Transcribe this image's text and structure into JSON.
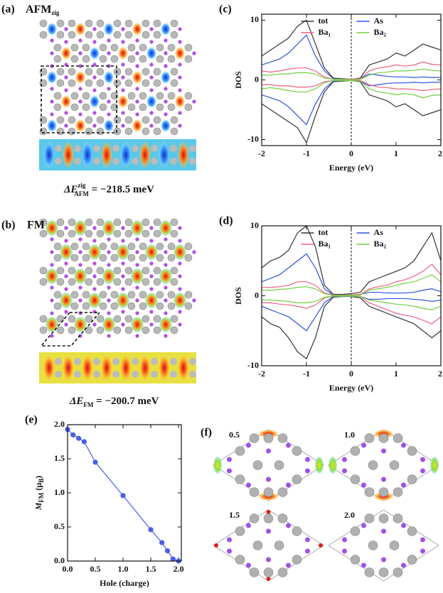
{
  "panels": {
    "a_label": "(a)",
    "a_title": "AFM",
    "a_title_sub": "zig",
    "a_energy": {
      "symbol": "ΔE",
      "sup": "zig",
      "sub": "AFM",
      "rest": " = −218.5 meV"
    },
    "b_label": "(b)",
    "b_title": "FM",
    "b_energy": {
      "symbol": "ΔE",
      "sub": "FM",
      "rest": " = −200.7 meV"
    },
    "f_label": "(f)",
    "f_values": [
      "0.5",
      "1.0",
      "1.5",
      "2.0"
    ]
  },
  "chart_data": [
    {
      "type": "line",
      "label": "(c)",
      "xlabel": "Energy (eV)",
      "ylabel": "DOS",
      "x": [
        -2,
        -1.8,
        -1.6,
        -1.4,
        -1.2,
        -1,
        -0.8,
        -0.6,
        -0.4,
        -0.2,
        0,
        0.2,
        0.4,
        0.6,
        0.8,
        1,
        1.2,
        1.4,
        1.6,
        1.8,
        2
      ],
      "xlim": [
        -2,
        2
      ],
      "ylim": [
        -11,
        11
      ],
      "xticks": [
        -2,
        -1,
        0,
        1,
        2
      ],
      "yticks": [
        -10,
        0,
        10
      ],
      "vline": 0,
      "series": [
        {
          "name": "tot",
          "color": "#333333",
          "values": [
            4,
            5,
            6,
            7,
            9,
            10,
            6,
            2,
            0.3,
            0.2,
            0.1,
            0.3,
            2.5,
            3,
            3.5,
            4.5,
            4,
            5,
            6,
            5.5,
            5
          ],
          "values_down": [
            -4,
            -5,
            -6,
            -7,
            -8,
            -10.5,
            -6,
            -2,
            -0.3,
            -0.2,
            -0.1,
            -0.3,
            -2.5,
            -3,
            -3.5,
            -4.5,
            -4,
            -5,
            -6,
            -5.5,
            -5
          ]
        },
        {
          "name": "As",
          "color": "#3050e0",
          "values": [
            2.5,
            3,
            3.5,
            4.5,
            6,
            7.5,
            4,
            1.5,
            0.2,
            0.1,
            0.1,
            0.2,
            1,
            0.8,
            0.6,
            0.5,
            0.5,
            0.4,
            0.5,
            0.4,
            0.4
          ],
          "values_down": [
            -2.5,
            -3,
            -3.5,
            -4.5,
            -6,
            -7.5,
            -4,
            -1.5,
            -0.2,
            -0.1,
            -0.1,
            -0.2,
            -1,
            -0.8,
            -0.6,
            -0.5,
            -0.5,
            -0.4,
            -0.5,
            -0.4,
            -0.4
          ]
        },
        {
          "name": "Ba₁",
          "color": "#f06080",
          "values": [
            1.5,
            1.3,
            1.5,
            1.8,
            2,
            2,
            1.5,
            0.5,
            0.1,
            0.1,
            0.1,
            0.2,
            1.5,
            2,
            2.2,
            2.5,
            2.3,
            2.5,
            3,
            2.6,
            2.5
          ],
          "values_down": [
            -0.8,
            -0.8,
            -1,
            -1,
            -1.2,
            -1.2,
            -1,
            -0.3,
            -0.1,
            -0.1,
            -0.05,
            -0.1,
            -0.8,
            -1.2,
            -1.3,
            -1.5,
            -1.5,
            -1.6,
            -1.8,
            -1.6,
            -1.5
          ]
        },
        {
          "name": "Ba₂",
          "color": "#70d040",
          "values": [
            0.8,
            0.8,
            1,
            1,
            1.2,
            1.2,
            1,
            0.3,
            0.1,
            0.1,
            0.05,
            0.1,
            0.8,
            1.2,
            1.3,
            1.5,
            1.5,
            1.6,
            1.8,
            1.6,
            1.5
          ],
          "values_down": [
            -1.5,
            -1.3,
            -1.5,
            -1.8,
            -2,
            -2,
            -1.5,
            -0.5,
            -0.1,
            -0.1,
            -0.1,
            -0.2,
            -1.5,
            -2,
            -2.2,
            -2.5,
            -2.3,
            -2.5,
            -3,
            -2.6,
            -2.5
          ]
        }
      ]
    },
    {
      "type": "line",
      "label": "(d)",
      "xlabel": "Energy (eV)",
      "ylabel": "DOS",
      "x": [
        -2,
        -1.8,
        -1.6,
        -1.4,
        -1.2,
        -1,
        -0.8,
        -0.6,
        -0.4,
        -0.2,
        0,
        0.2,
        0.4,
        0.6,
        0.8,
        1,
        1.2,
        1.4,
        1.6,
        1.8,
        2
      ],
      "xlim": [
        -2,
        2
      ],
      "ylim": [
        -10,
        10
      ],
      "xticks": [
        -2,
        -1,
        0,
        1,
        2
      ],
      "yticks": [
        -10,
        0,
        10
      ],
      "vline": 0,
      "series": [
        {
          "name": "tot",
          "color": "#333333",
          "values": [
            4,
            5,
            5.5,
            6.5,
            9,
            10,
            7,
            1.5,
            0.2,
            0.2,
            0.3,
            0.5,
            2,
            2.5,
            3,
            3.5,
            4,
            5,
            7,
            9,
            5
          ],
          "values_down": [
            -3,
            -4,
            -4.5,
            -6,
            -8,
            -9,
            -6,
            -1.5,
            -0.2,
            -0.1,
            -0.1,
            -0.3,
            -1.5,
            -2,
            -2.5,
            -3,
            -3.5,
            -4,
            -5,
            -6,
            -5
          ]
        },
        {
          "name": "As",
          "color": "#3050e0",
          "values": [
            2,
            2.5,
            3,
            4,
            5,
            6,
            4,
            1,
            0.1,
            0.1,
            0.1,
            0.2,
            0.5,
            0.5,
            0.4,
            0.4,
            0.4,
            0.5,
            0.8,
            1,
            0.6
          ],
          "values_down": [
            -1.5,
            -2,
            -2.5,
            -3,
            -4,
            -5,
            -3,
            -1,
            -0.1,
            -0.1,
            -0.05,
            -0.1,
            -0.5,
            -0.5,
            -0.4,
            -0.4,
            -0.4,
            -0.5,
            -0.6,
            -0.8,
            -0.6
          ]
        },
        {
          "name": "Ba₁",
          "color": "#f06080",
          "values": [
            1.2,
            1.2,
            1.3,
            1.5,
            2,
            2,
            1.5,
            0.4,
            0.1,
            0.1,
            0.1,
            0.2,
            1,
            1.3,
            1.5,
            2,
            2.3,
            2.8,
            3.5,
            4.5,
            3
          ],
          "values_down": [
            -1,
            -1,
            -1.2,
            -1.3,
            -1.5,
            -1.8,
            -1.3,
            -0.3,
            -0.05,
            -0.05,
            -0.05,
            -0.1,
            -1,
            -1.5,
            -2,
            -2.5,
            -2.8,
            -3,
            -3.5,
            -4,
            -3
          ]
        },
        {
          "name": "Ba₂",
          "color": "#70d040",
          "values": [
            0.8,
            0.8,
            0.9,
            1,
            1.2,
            1.3,
            1,
            0.3,
            0.05,
            0.05,
            0.05,
            0.1,
            0.8,
            1,
            1.2,
            1.5,
            1.8,
            2,
            2.5,
            3,
            2
          ],
          "values_down": [
            -0.6,
            -0.6,
            -0.7,
            -0.8,
            -1,
            -1,
            -0.8,
            -0.2,
            -0.05,
            -0.05,
            -0.05,
            -0.1,
            -0.6,
            -0.8,
            -1,
            -1.2,
            -1.3,
            -1.5,
            -1.8,
            -2,
            -1.5
          ]
        }
      ]
    },
    {
      "type": "scatter",
      "label": "(e)",
      "xlabel": "Hole (charge)",
      "ylabel": [
        {
          "text": "M"
        },
        {
          "sub": "FM"
        },
        {
          "text": " (μ"
        },
        {
          "sub": "B"
        },
        {
          "text": ")"
        }
      ],
      "color": "#4a5ee8",
      "connect": true,
      "x": [
        0,
        0.1,
        0.2,
        0.3,
        0.5,
        1.0,
        1.5,
        1.7,
        1.8,
        1.9,
        2.0
      ],
      "values": [
        1.93,
        1.85,
        1.8,
        1.75,
        1.45,
        0.96,
        0.46,
        0.27,
        0.15,
        0.03,
        0.0
      ],
      "xlim": [
        0,
        2.05
      ],
      "ylim": [
        0,
        2.0
      ],
      "xticks": [
        {
          "value": 0,
          "label": "0.0"
        },
        {
          "value": 0.5,
          "label": "0.5"
        },
        {
          "value": 1,
          "label": "1.0"
        },
        {
          "value": 1.5,
          "label": "1.5"
        },
        {
          "value": 2,
          "label": "2.0"
        }
      ],
      "yticks": [
        {
          "value": 0,
          "label": "0.0"
        },
        {
          "value": 0.5,
          "label": "0.5"
        },
        {
          "value": 1,
          "label": "1.0"
        },
        {
          "value": 1.5,
          "label": "1.5"
        },
        {
          "value": 2,
          "label": "2.0"
        }
      ]
    }
  ]
}
